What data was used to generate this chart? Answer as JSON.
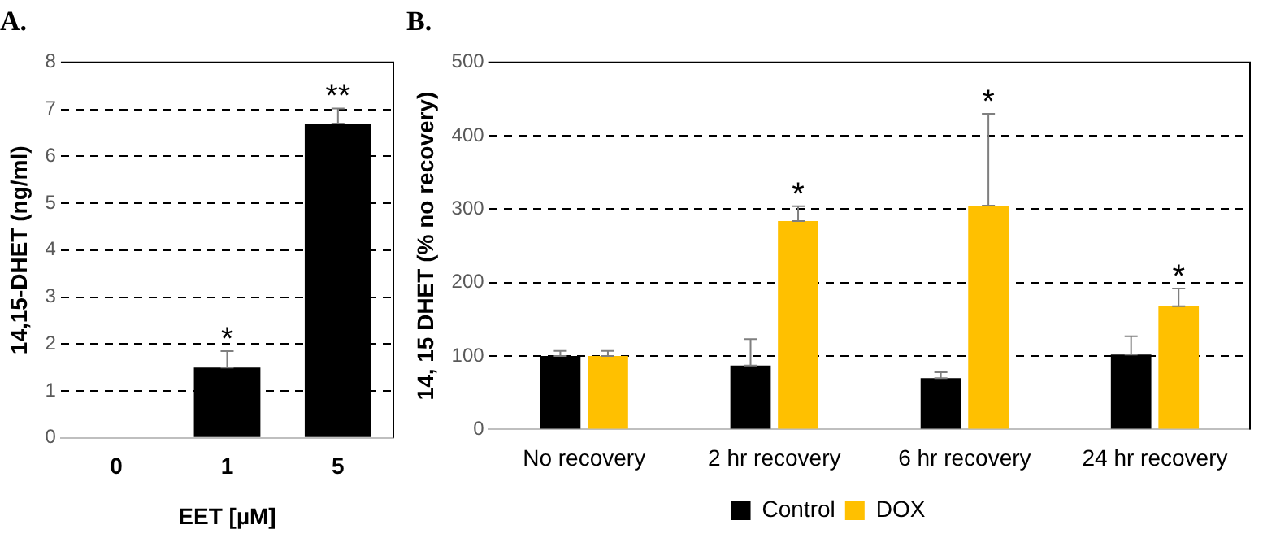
{
  "chart_data": [
    {
      "type": "bar",
      "title": "A.",
      "xlabel": "EET [µM]",
      "ylabel": "14,15-DHET (ng/ml)",
      "categories": [
        "0",
        "1",
        "5"
      ],
      "series": [
        {
          "color": "#000000",
          "values": [
            0,
            1.5,
            6.7
          ],
          "errors": [
            null,
            [
              1.5,
              1.85
            ],
            [
              6.7,
              7.02
            ]
          ]
        }
      ],
      "ylim": [
        0,
        8
      ],
      "yticks": [
        0,
        1,
        2,
        3,
        4,
        5,
        6,
        7,
        8
      ],
      "grid": "y",
      "legend": false,
      "annotations": [
        "*",
        "**"
      ]
    },
    {
      "type": "bar",
      "title": "B.",
      "ylabel": "14, 15 DHET (% no recovery)",
      "categories": [
        "No recovery",
        "2 hr recovery",
        "6 hr recovery",
        "24 hr recovery"
      ],
      "series": [
        {
          "name": "Control",
          "color": "#000000",
          "values": [
            100,
            87,
            70,
            102
          ],
          "errors": [
            [
              100,
              107
            ],
            [
              87,
              123
            ],
            [
              70,
              78
            ],
            [
              102,
              127
            ]
          ]
        },
        {
          "name": "DOX",
          "color": "#ffc000",
          "values": [
            100,
            284,
            305,
            168
          ],
          "errors": [
            [
              100,
              107
            ],
            [
              284,
              304
            ],
            [
              305,
              430
            ],
            [
              168,
              192
            ]
          ]
        }
      ],
      "ylim": [
        0,
        500
      ],
      "yticks": [
        0,
        100,
        200,
        300,
        400,
        500
      ],
      "grid": "y",
      "legend": "bottom",
      "annotations": [
        "*",
        "*",
        "*"
      ]
    }
  ]
}
